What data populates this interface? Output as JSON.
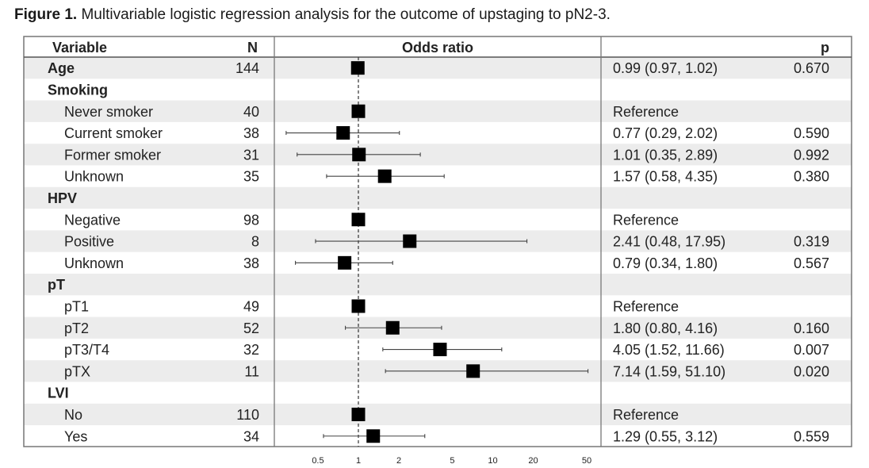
{
  "figure": {
    "label": "Figure 1.",
    "caption": "Multivariable logistic regression analysis for the outcome of upstaging to pN2-3."
  },
  "headers": {
    "variable": "Variable",
    "n": "N",
    "odds_ratio": "Odds ratio",
    "p": "p"
  },
  "chart_data": {
    "type": "forest",
    "title": "Multivariable logistic regression analysis for the outcome of upstaging to pN2-3.",
    "x_scale": "log",
    "x_ticks": [
      0.5,
      1,
      2,
      5,
      10,
      20,
      50
    ],
    "x_tick_labels": [
      "0.5",
      "1",
      "2",
      "5",
      "10",
      "20",
      "50"
    ],
    "reference_line": 1,
    "rows": [
      {
        "variable": "Age",
        "bold": true,
        "n": "144",
        "or": 0.99,
        "lo": 0.97,
        "hi": 1.02,
        "estimate_text": "0.99 (0.97, 1.02)",
        "p": "0.670"
      },
      {
        "variable": "Smoking",
        "bold": true,
        "n": "",
        "or": null,
        "lo": null,
        "hi": null,
        "estimate_text": "",
        "p": ""
      },
      {
        "variable": "Never smoker",
        "indent": true,
        "n": "40",
        "or": 1,
        "lo": null,
        "hi": null,
        "estimate_text": "Reference",
        "p": ""
      },
      {
        "variable": "Current smoker",
        "indent": true,
        "n": "38",
        "or": 0.77,
        "lo": 0.29,
        "hi": 2.02,
        "estimate_text": "0.77 (0.29, 2.02)",
        "p": "0.590"
      },
      {
        "variable": "Former smoker",
        "indent": true,
        "n": "31",
        "or": 1.01,
        "lo": 0.35,
        "hi": 2.89,
        "estimate_text": "1.01 (0.35, 2.89)",
        "p": "0.992"
      },
      {
        "variable": "Unknown",
        "indent": true,
        "n": "35",
        "or": 1.57,
        "lo": 0.58,
        "hi": 4.35,
        "estimate_text": "1.57 (0.58, 4.35)",
        "p": "0.380"
      },
      {
        "variable": "HPV",
        "bold": true,
        "n": "",
        "or": null,
        "lo": null,
        "hi": null,
        "estimate_text": "",
        "p": ""
      },
      {
        "variable": "Negative",
        "indent": true,
        "n": "98",
        "or": 1,
        "lo": null,
        "hi": null,
        "estimate_text": "Reference",
        "p": ""
      },
      {
        "variable": "Positive",
        "indent": true,
        "n": "8",
        "or": 2.41,
        "lo": 0.48,
        "hi": 17.95,
        "estimate_text": "2.41 (0.48, 17.95)",
        "p": "0.319"
      },
      {
        "variable": "Unknown",
        "indent": true,
        "n": "38",
        "or": 0.79,
        "lo": 0.34,
        "hi": 1.8,
        "estimate_text": "0.79 (0.34, 1.80)",
        "p": "0.567"
      },
      {
        "variable": "pT",
        "bold": true,
        "n": "",
        "or": null,
        "lo": null,
        "hi": null,
        "estimate_text": "",
        "p": ""
      },
      {
        "variable": "pT1",
        "indent": true,
        "n": "49",
        "or": 1,
        "lo": null,
        "hi": null,
        "estimate_text": "Reference",
        "p": ""
      },
      {
        "variable": "pT2",
        "indent": true,
        "n": "52",
        "or": 1.8,
        "lo": 0.8,
        "hi": 4.16,
        "estimate_text": "1.80 (0.80, 4.16)",
        "p": "0.160"
      },
      {
        "variable": "pT3/T4",
        "indent": true,
        "n": "32",
        "or": 4.05,
        "lo": 1.52,
        "hi": 11.66,
        "estimate_text": "4.05 (1.52, 11.66)",
        "p": "0.007"
      },
      {
        "variable": "pTX",
        "indent": true,
        "n": "11",
        "or": 7.14,
        "lo": 1.59,
        "hi": 51.1,
        "estimate_text": "7.14 (1.59, 51.10)",
        "p": "0.020"
      },
      {
        "variable": "LVI",
        "bold": true,
        "n": "",
        "or": null,
        "lo": null,
        "hi": null,
        "estimate_text": "",
        "p": ""
      },
      {
        "variable": "No",
        "indent": true,
        "n": "110",
        "or": 1,
        "lo": null,
        "hi": null,
        "estimate_text": "Reference",
        "p": ""
      },
      {
        "variable": "Yes",
        "indent": true,
        "n": "34",
        "or": 1.29,
        "lo": 0.55,
        "hi": 3.12,
        "estimate_text": "1.29 (0.55, 3.12)",
        "p": "0.559"
      }
    ],
    "colors": {
      "stripe": "#ececec",
      "marker": "#000000",
      "frame": "#777777"
    }
  }
}
